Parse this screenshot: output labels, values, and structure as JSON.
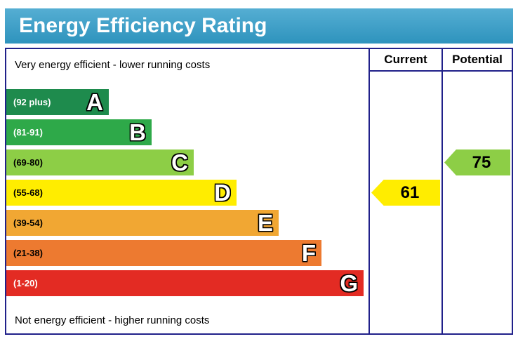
{
  "notes": {
    "top": "Very energy efficient - lower running costs",
    "bottom": "Not energy efficient - higher running costs"
  },
  "header": {
    "current": "Current",
    "potential": "Potential"
  },
  "colors": {
    "title_bg_top": "#55aed3",
    "title_bg_bottom": "#2e93bd",
    "title_text": "#ffffff",
    "border": "#20208a"
  },
  "chart_data": {
    "type": "bar",
    "subtype": "epc-energy-efficiency-rating",
    "title": "Energy Efficiency Rating",
    "bands": [
      {
        "letter": "A",
        "range": "(92 plus)",
        "range_min": 92,
        "range_max": 100,
        "color": "#1e8b4d",
        "label_color": "#ffffff"
      },
      {
        "letter": "B",
        "range": "(81-91)",
        "range_min": 81,
        "range_max": 91,
        "color": "#2ea949",
        "label_color": "#ffffff"
      },
      {
        "letter": "C",
        "range": "(69-80)",
        "range_min": 69,
        "range_max": 80,
        "color": "#8dce46",
        "label_color": "#000000"
      },
      {
        "letter": "D",
        "range": "(55-68)",
        "range_min": 55,
        "range_max": 68,
        "color": "#ffed00",
        "label_color": "#000000"
      },
      {
        "letter": "E",
        "range": "(39-54)",
        "range_min": 39,
        "range_max": 54,
        "color": "#f1a733",
        "label_color": "#000000"
      },
      {
        "letter": "F",
        "range": "(21-38)",
        "range_min": 21,
        "range_max": 38,
        "color": "#ed7a30",
        "label_color": "#000000"
      },
      {
        "letter": "G",
        "range": "(1-20)",
        "range_min": 1,
        "range_max": 20,
        "color": "#e32b23",
        "label_color": "#ffffff"
      }
    ],
    "current": {
      "value": 61,
      "band": "D",
      "color": "#ffed00"
    },
    "potential": {
      "value": 75,
      "band": "C",
      "color": "#8dce46"
    }
  }
}
